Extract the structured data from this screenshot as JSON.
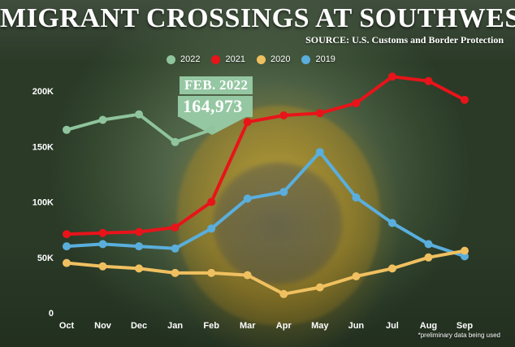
{
  "title": "MIGRANT CROSSINGS AT SOUTHWEST BORDER",
  "source": "SOURCE: U.S. Customs and Border Protection",
  "footnote": "*preliminary data being used",
  "callout": {
    "line1": "FEB. 2022",
    "line2": "164,973"
  },
  "chart_data": {
    "type": "line",
    "title": "MIGRANT CROSSINGS AT SOUTHWEST BORDER",
    "xlabel": "",
    "ylabel": "",
    "categories": [
      "Oct",
      "Nov",
      "Dec",
      "Jan",
      "Feb",
      "Mar",
      "Apr",
      "May",
      "Jun",
      "Jul",
      "Aug",
      "Sep"
    ],
    "y_ticks": [
      "0",
      "50K",
      "100K",
      "150K",
      "200K"
    ],
    "ylim": [
      0,
      210000
    ],
    "grid": false,
    "legend_position": "top-center",
    "series": [
      {
        "name": "2022",
        "color": "#8fc49c",
        "values": [
          165000,
          174000,
          179000,
          154000,
          164973,
          null,
          null,
          null,
          null,
          null,
          null,
          null
        ]
      },
      {
        "name": "2021",
        "color": "#e8141a",
        "values": [
          71000,
          72000,
          73000,
          77000,
          100000,
          172000,
          178000,
          180000,
          189000,
          213000,
          209000,
          192000
        ]
      },
      {
        "name": "2020",
        "color": "#f0c060",
        "values": [
          45000,
          42000,
          40000,
          36000,
          36000,
          34000,
          17000,
          23000,
          33000,
          40000,
          50000,
          56000
        ]
      },
      {
        "name": "2019",
        "color": "#5aaedc",
        "values": [
          60000,
          62000,
          60000,
          58000,
          76000,
          103000,
          109000,
          145000,
          104000,
          81000,
          62000,
          51000
        ]
      }
    ]
  }
}
